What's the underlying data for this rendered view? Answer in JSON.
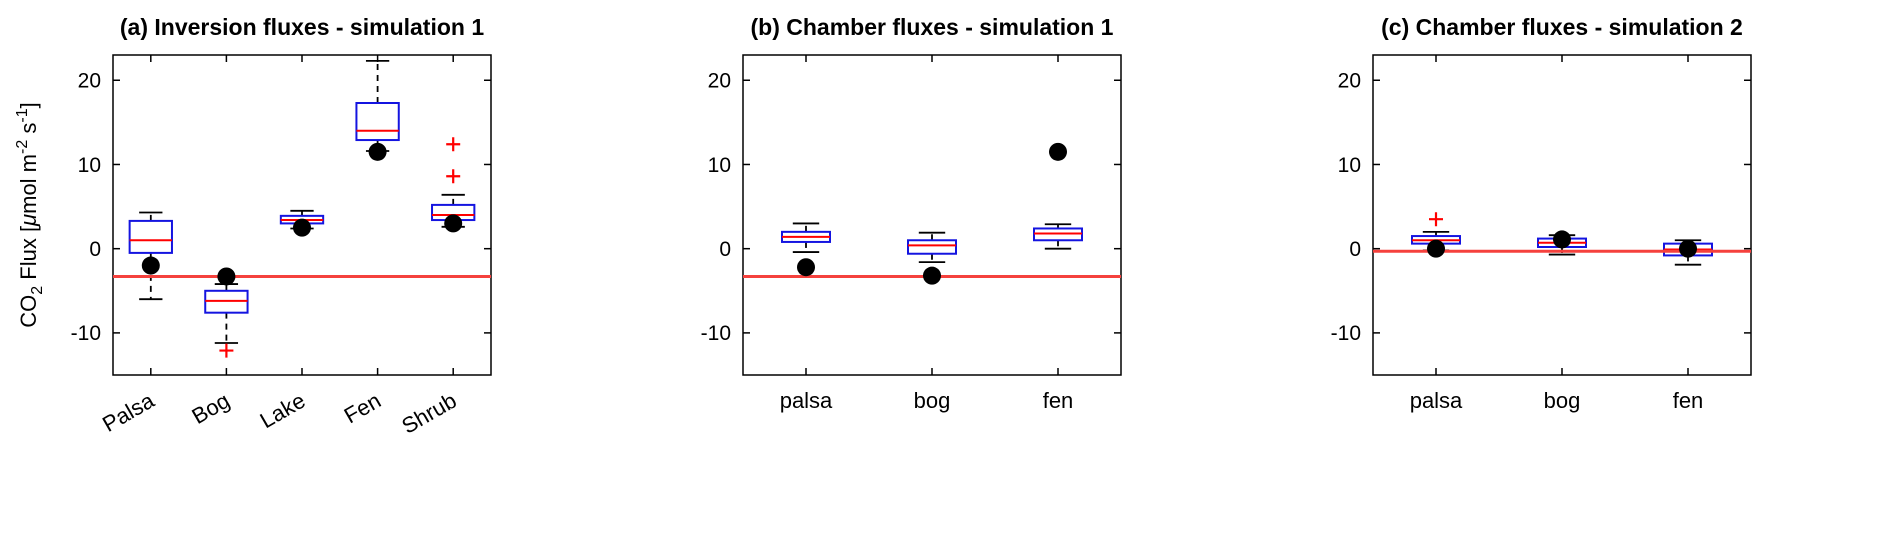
{
  "figure": {
    "ylabel_parts": [
      {
        "text": "CO",
        "style": "normal"
      },
      {
        "text": "2",
        "style": "sub"
      },
      {
        "text": " Flux [",
        "style": "normal"
      },
      {
        "text": "μ",
        "style": "italic"
      },
      {
        "text": "mol m",
        "style": "normal"
      },
      {
        "text": "-2",
        "style": "sup"
      },
      {
        "text": " s",
        "style": "normal"
      },
      {
        "text": "-1",
        "style": "sup"
      },
      {
        "text": "]",
        "style": "normal"
      }
    ],
    "colors": {
      "box": "#1414e0",
      "median": "#ff0000",
      "refline": "#f5413d",
      "whisker": "#000000",
      "cap": "#000000",
      "dot": "#000000",
      "outlier": "#ff0000",
      "axis": "#000000"
    }
  },
  "chart_data": [
    {
      "type": "box",
      "title": "(a) Inversion fluxes - simulation 1",
      "categories": [
        "Palsa",
        "Bog",
        "Lake",
        "Fen",
        "Shrub"
      ],
      "ylim": [
        -15,
        23
      ],
      "yticks": [
        -10,
        0,
        10,
        20
      ],
      "refline": -3.3,
      "xtick_rotation": -30,
      "boxes": [
        {
          "q1": -0.5,
          "median": 1.0,
          "q3": 3.3,
          "lo": -6.0,
          "hi": 4.3,
          "mean_dot": -2.0,
          "outliers": []
        },
        {
          "q1": -7.6,
          "median": -6.2,
          "q3": -5.0,
          "lo": -11.2,
          "hi": -4.2,
          "mean_dot": -3.3,
          "outliers": [
            -12.1
          ]
        },
        {
          "q1": 3.0,
          "median": 3.4,
          "q3": 3.9,
          "lo": 2.4,
          "hi": 4.5,
          "mean_dot": 2.5,
          "outliers": []
        },
        {
          "q1": 12.9,
          "median": 14.0,
          "q3": 17.3,
          "lo": 11.6,
          "hi": 22.3,
          "mean_dot": 11.5,
          "outliers": []
        },
        {
          "q1": 3.4,
          "median": 4.0,
          "q3": 5.2,
          "lo": 2.6,
          "hi": 6.4,
          "mean_dot": 3.0,
          "outliers": [
            8.6,
            12.4
          ]
        }
      ]
    },
    {
      "type": "box",
      "title": "(b) Chamber fluxes - simulation 1",
      "categories": [
        "palsa",
        "bog",
        "fen"
      ],
      "ylim": [
        -15,
        23
      ],
      "yticks": [
        -10,
        0,
        10,
        20
      ],
      "refline": -3.3,
      "xtick_rotation": 0,
      "boxes": [
        {
          "q1": 0.8,
          "median": 1.4,
          "q3": 2.0,
          "lo": -0.4,
          "hi": 3.0,
          "mean_dot": -2.2,
          "outliers": []
        },
        {
          "q1": -0.6,
          "median": 0.4,
          "q3": 1.0,
          "lo": -1.6,
          "hi": 1.9,
          "mean_dot": -3.2,
          "outliers": []
        },
        {
          "q1": 1.0,
          "median": 1.8,
          "q3": 2.4,
          "lo": 0.0,
          "hi": 2.9,
          "mean_dot": 11.5,
          "outliers": []
        }
      ]
    },
    {
      "type": "box",
      "title": "(c) Chamber fluxes - simulation 2",
      "categories": [
        "palsa",
        "bog",
        "fen"
      ],
      "ylim": [
        -15,
        23
      ],
      "yticks": [
        -10,
        0,
        10,
        20
      ],
      "refline": -0.3,
      "xtick_rotation": 0,
      "boxes": [
        {
          "q1": 0.6,
          "median": 1.0,
          "q3": 1.5,
          "lo": -0.2,
          "hi": 2.0,
          "mean_dot": 0.0,
          "outliers": [
            3.5
          ]
        },
        {
          "q1": 0.2,
          "median": 0.7,
          "q3": 1.2,
          "lo": -0.7,
          "hi": 1.6,
          "mean_dot": 1.1,
          "outliers": []
        },
        {
          "q1": -0.8,
          "median": -0.1,
          "q3": 0.6,
          "lo": -1.9,
          "hi": 1.0,
          "mean_dot": 0.0,
          "outliers": []
        }
      ]
    }
  ]
}
